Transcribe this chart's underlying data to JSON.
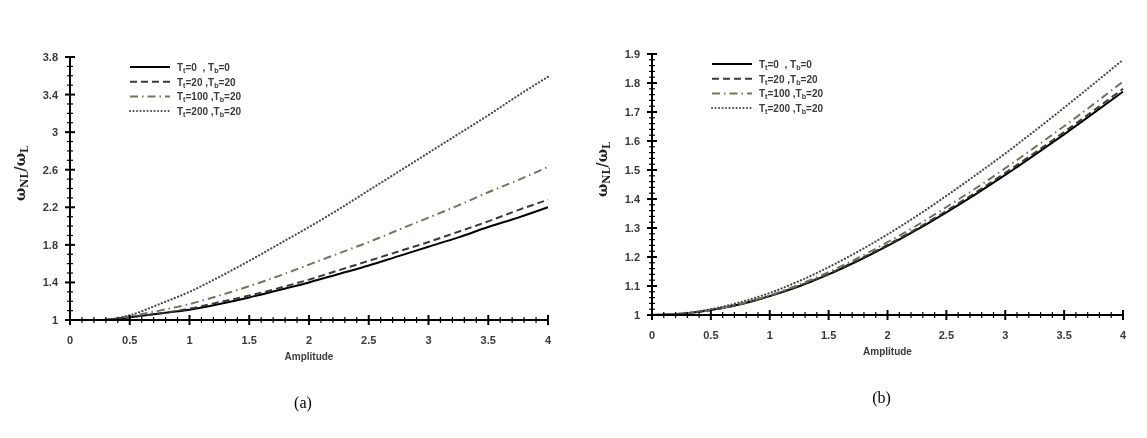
{
  "chart_data": [
    {
      "type": "line",
      "xlabel": "Amplitude",
      "ylabel": "ω$_{NL}$/ω$_{L}$",
      "annotations": [
        "(a)"
      ],
      "legend": "top left",
      "x": [
        0,
        0.25,
        0.5,
        0.75,
        1,
        1.25,
        1.5,
        1.75,
        2,
        2.25,
        2.5,
        2.75,
        3,
        3.25,
        3.5,
        3.75,
        4
      ],
      "xlim": [
        0,
        4
      ],
      "ylim": [
        1,
        3.8
      ],
      "xticks": [
        0,
        {
          "value": 0.1,
          "label": null
        },
        {
          "value": 0.2,
          "label": null
        },
        {
          "value": 0.3,
          "label": null
        },
        {
          "value": 0.4,
          "label": null
        },
        0.5,
        {
          "value": 0.6,
          "label": null
        },
        {
          "value": 0.7,
          "label": null
        },
        {
          "value": 0.8,
          "label": null
        },
        {
          "value": 0.9,
          "label": null
        },
        1,
        {
          "value": 1.1,
          "label": null
        },
        {
          "value": 1.2,
          "label": null
        },
        {
          "value": 1.3,
          "label": null
        },
        {
          "value": 1.4,
          "label": null
        },
        1.5,
        {
          "value": 1.6,
          "label": null
        },
        {
          "value": 1.7,
          "label": null
        },
        {
          "value": 1.8,
          "label": null
        },
        {
          "value": 1.9,
          "label": null
        },
        2,
        {
          "value": 2.1,
          "label": null
        },
        {
          "value": 2.2,
          "label": null
        },
        {
          "value": 2.3,
          "label": null
        },
        {
          "value": 2.4,
          "label": null
        },
        2.5,
        {
          "value": 2.6,
          "label": null
        },
        {
          "value": 2.7,
          "label": null
        },
        {
          "value": 2.8,
          "label": null
        },
        {
          "value": 2.9,
          "label": null
        },
        3,
        {
          "value": 3.1,
          "label": null
        },
        {
          "value": 3.2,
          "label": null
        },
        {
          "value": 3.3,
          "label": null
        },
        {
          "value": 3.4,
          "label": null
        },
        3.5,
        {
          "value": 3.6,
          "label": null
        },
        {
          "value": 3.7,
          "label": null
        },
        {
          "value": 3.8,
          "label": null
        },
        {
          "value": 3.9,
          "label": null
        },
        4
      ],
      "yticks": [
        1,
        {
          "value": 1.1,
          "label": null
        },
        {
          "value": 1.2,
          "label": null
        },
        {
          "value": 1.3,
          "label": null
        },
        1.4,
        {
          "value": 1.5,
          "label": null
        },
        {
          "value": 1.6,
          "label": null
        },
        {
          "value": 1.7,
          "label": null
        },
        1.8,
        {
          "value": 1.9,
          "label": null
        },
        {
          "value": 2,
          "label": null
        },
        {
          "value": 2.1,
          "label": null
        },
        2.2,
        {
          "value": 2.3,
          "label": null
        },
        {
          "value": 2.4,
          "label": null
        },
        {
          "value": 2.5,
          "label": null
        },
        2.6,
        {
          "value": 2.7,
          "label": null
        },
        {
          "value": 2.8,
          "label": null
        },
        {
          "value": 2.9,
          "label": null
        },
        3,
        {
          "value": 3.1,
          "label": null
        },
        {
          "value": 3.2,
          "label": null
        },
        {
          "value": 3.3,
          "label": null
        },
        3.4,
        {
          "value": 3.5,
          "label": null
        },
        {
          "value": 3.6,
          "label": null
        },
        {
          "value": 3.7,
          "label": null
        },
        3.8
      ],
      "series": [
        {
          "name": "T$_{t}$=0  , T$_{b}$=0",
          "color": "#000000",
          "line_style": "solid",
          "values": [
            1,
            1,
            1.03,
            1.07,
            1.11,
            1.17,
            1.24,
            1.32,
            1.4,
            1.49,
            1.58,
            1.68,
            1.78,
            1.88,
            1.99,
            2.09,
            2.2
          ]
        },
        {
          "name": "T$_{t}$=20 ,T$_{b}$=20",
          "color": "#3a3a3a",
          "line_style": "dashed",
          "values": [
            1,
            1,
            1.03,
            1.07,
            1.12,
            1.19,
            1.26,
            1.34,
            1.43,
            1.53,
            1.63,
            1.73,
            1.83,
            1.94,
            2.05,
            2.17,
            2.28
          ]
        },
        {
          "name": "T$_{t}$=100 ,T$_{b}$=20",
          "color": "#74745a",
          "line_style": "dashdot",
          "values": [
            1,
            1,
            1.04,
            1.1,
            1.17,
            1.26,
            1.36,
            1.47,
            1.59,
            1.71,
            1.83,
            1.96,
            2.09,
            2.22,
            2.36,
            2.49,
            2.63
          ]
        },
        {
          "name": "T$_{t}$=200 ,T$_{b}$=20",
          "color": "#4a4a4a",
          "line_style": "dotted",
          "values": [
            1,
            1,
            1.05,
            1.17,
            1.3,
            1.46,
            1.63,
            1.81,
            1.99,
            2.18,
            2.38,
            2.58,
            2.78,
            2.98,
            3.18,
            3.39,
            3.59
          ]
        }
      ]
    },
    {
      "type": "line",
      "xlabel": "Amplitude",
      "ylabel": "ω$_{NL}$/ω$_{L}$",
      "annotations": [
        "(b)"
      ],
      "legend": "top left",
      "x": [
        0,
        0.25,
        0.5,
        0.75,
        1,
        1.25,
        1.5,
        1.75,
        2,
        2.25,
        2.5,
        2.75,
        3,
        3.25,
        3.5,
        3.75,
        4
      ],
      "xlim": [
        0,
        4
      ],
      "ylim": [
        1,
        1.9
      ],
      "xticks": [
        0,
        {
          "value": 0.1,
          "label": null
        },
        {
          "value": 0.2,
          "label": null
        },
        {
          "value": 0.3,
          "label": null
        },
        {
          "value": 0.4,
          "label": null
        },
        0.5,
        {
          "value": 0.6,
          "label": null
        },
        {
          "value": 0.7,
          "label": null
        },
        {
          "value": 0.8,
          "label": null
        },
        {
          "value": 0.9,
          "label": null
        },
        1,
        {
          "value": 1.1,
          "label": null
        },
        {
          "value": 1.2,
          "label": null
        },
        {
          "value": 1.3,
          "label": null
        },
        {
          "value": 1.4,
          "label": null
        },
        1.5,
        {
          "value": 1.6,
          "label": null
        },
        {
          "value": 1.7,
          "label": null
        },
        {
          "value": 1.8,
          "label": null
        },
        {
          "value": 1.9,
          "label": null
        },
        2,
        {
          "value": 2.1,
          "label": null
        },
        {
          "value": 2.2,
          "label": null
        },
        {
          "value": 2.3,
          "label": null
        },
        {
          "value": 2.4,
          "label": null
        },
        2.5,
        {
          "value": 2.6,
          "label": null
        },
        {
          "value": 2.7,
          "label": null
        },
        {
          "value": 2.8,
          "label": null
        },
        {
          "value": 2.9,
          "label": null
        },
        3,
        {
          "value": 3.1,
          "label": null
        },
        {
          "value": 3.2,
          "label": null
        },
        {
          "value": 3.3,
          "label": null
        },
        {
          "value": 3.4,
          "label": null
        },
        3.5,
        {
          "value": 3.6,
          "label": null
        },
        {
          "value": 3.7,
          "label": null
        },
        {
          "value": 3.8,
          "label": null
        },
        {
          "value": 3.9,
          "label": null
        },
        4
      ],
      "yticks": [
        1,
        {
          "value": 1.02,
          "label": null
        },
        {
          "value": 1.04,
          "label": null
        },
        {
          "value": 1.06,
          "label": null
        },
        {
          "value": 1.08,
          "label": null
        },
        1.1,
        {
          "value": 1.12,
          "label": null
        },
        {
          "value": 1.14,
          "label": null
        },
        {
          "value": 1.16,
          "label": null
        },
        {
          "value": 1.18,
          "label": null
        },
        1.2,
        {
          "value": 1.22,
          "label": null
        },
        {
          "value": 1.24,
          "label": null
        },
        {
          "value": 1.26,
          "label": null
        },
        {
          "value": 1.28,
          "label": null
        },
        1.3,
        {
          "value": 1.32,
          "label": null
        },
        {
          "value": 1.34,
          "label": null
        },
        {
          "value": 1.36,
          "label": null
        },
        {
          "value": 1.38,
          "label": null
        },
        1.4,
        {
          "value": 1.42,
          "label": null
        },
        {
          "value": 1.44,
          "label": null
        },
        {
          "value": 1.46,
          "label": null
        },
        {
          "value": 1.48,
          "label": null
        },
        1.5,
        {
          "value": 1.52,
          "label": null
        },
        {
          "value": 1.54,
          "label": null
        },
        {
          "value": 1.56,
          "label": null
        },
        {
          "value": 1.58,
          "label": null
        },
        1.6,
        {
          "value": 1.62,
          "label": null
        },
        {
          "value": 1.64,
          "label": null
        },
        {
          "value": 1.66,
          "label": null
        },
        {
          "value": 1.68,
          "label": null
        },
        1.7,
        {
          "value": 1.72,
          "label": null
        },
        {
          "value": 1.74,
          "label": null
        },
        {
          "value": 1.76,
          "label": null
        },
        {
          "value": 1.78,
          "label": null
        },
        1.8,
        {
          "value": 1.82,
          "label": null
        },
        {
          "value": 1.84,
          "label": null
        },
        {
          "value": 1.86,
          "label": null
        },
        {
          "value": 1.88,
          "label": null
        },
        1.9
      ],
      "series": [
        {
          "name": "T$_{t}$=0  , T$_{b}$=0",
          "color": "#000000",
          "line_style": "solid",
          "values": [
            1,
            1.004,
            1.017,
            1.037,
            1.065,
            1.099,
            1.14,
            1.187,
            1.238,
            1.294,
            1.354,
            1.417,
            1.483,
            1.552,
            1.623,
            1.696,
            1.77
          ]
        },
        {
          "name": "T$_{t}$=20 ,T$_{b}$=20",
          "color": "#3a3a3a",
          "line_style": "dashed",
          "values": [
            1,
            1.004,
            1.017,
            1.037,
            1.066,
            1.101,
            1.142,
            1.19,
            1.242,
            1.298,
            1.359,
            1.423,
            1.49,
            1.559,
            1.631,
            1.705,
            1.78
          ]
        },
        {
          "name": "T$_{t}$=100 ,T$_{b}$=20",
          "color": "#74745a",
          "line_style": "dashdot",
          "values": [
            1,
            1.004,
            1.017,
            1.039,
            1.068,
            1.105,
            1.148,
            1.197,
            1.251,
            1.309,
            1.372,
            1.437,
            1.506,
            1.578,
            1.651,
            1.727,
            1.805
          ]
        },
        {
          "name": "T$_{t}$=200 ,T$_{b}$=20",
          "color": "#4a4a4a",
          "line_style": "dotted",
          "values": [
            1,
            1.005,
            1.02,
            1.044,
            1.076,
            1.117,
            1.165,
            1.219,
            1.278,
            1.342,
            1.411,
            1.483,
            1.557,
            1.635,
            1.715,
            1.797,
            1.88
          ]
        }
      ]
    }
  ]
}
